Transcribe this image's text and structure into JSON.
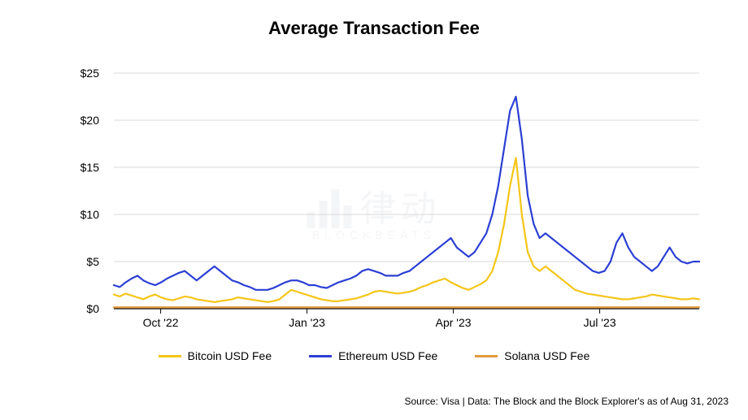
{
  "chart": {
    "type": "line",
    "title": "Average Transaction Fee",
    "title_fontsize": 22,
    "title_color": "#000000",
    "background_color": "#ffffff",
    "grid_color": "#d8d8d8",
    "axis_color": "#000000",
    "ylim": [
      0,
      25
    ],
    "yticks": [
      0,
      5,
      10,
      15,
      20,
      25
    ],
    "ytick_labels": [
      "$0",
      "$5",
      "$10",
      "$15",
      "$20",
      "$25"
    ],
    "xtick_positions": [
      0.08,
      0.33,
      0.58,
      0.83
    ],
    "xtick_labels": [
      "Oct '22",
      "Jan '23",
      "Apr '23",
      "Jul '23"
    ],
    "label_fontsize": 14,
    "line_width": 2.2,
    "series": [
      {
        "name": "Bitcoin USD Fee",
        "color": "#f5c518",
        "values": [
          1.5,
          1.3,
          1.6,
          1.4,
          1.2,
          1.0,
          1.3,
          1.5,
          1.2,
          1.0,
          0.9,
          1.1,
          1.3,
          1.2,
          1.0,
          0.9,
          0.8,
          0.7,
          0.8,
          0.9,
          1.0,
          1.2,
          1.1,
          1.0,
          0.9,
          0.8,
          0.7,
          0.8,
          1.0,
          1.5,
          2.0,
          1.8,
          1.6,
          1.4,
          1.2,
          1.0,
          0.9,
          0.8,
          0.8,
          0.9,
          1.0,
          1.1,
          1.3,
          1.5,
          1.8,
          1.9,
          1.8,
          1.7,
          1.6,
          1.7,
          1.8,
          2.0,
          2.3,
          2.5,
          2.8,
          3.0,
          3.2,
          2.8,
          2.5,
          2.2,
          2.0,
          2.3,
          2.6,
          3.0,
          4.0,
          6.0,
          9.0,
          13.0,
          16.0,
          10.0,
          6.0,
          4.5,
          4.0,
          4.5,
          4.0,
          3.5,
          3.0,
          2.5,
          2.0,
          1.8,
          1.6,
          1.5,
          1.4,
          1.3,
          1.2,
          1.1,
          1.0,
          1.0,
          1.1,
          1.2,
          1.3,
          1.5,
          1.4,
          1.3,
          1.2,
          1.1,
          1.0,
          1.0,
          1.1,
          1.0
        ]
      },
      {
        "name": "Ethereum USD Fee",
        "color": "#2b3fd4",
        "values": [
          2.5,
          2.3,
          2.8,
          3.2,
          3.5,
          3.0,
          2.7,
          2.5,
          2.8,
          3.2,
          3.5,
          3.8,
          4.0,
          3.5,
          3.0,
          3.5,
          4.0,
          4.5,
          4.0,
          3.5,
          3.0,
          2.8,
          2.5,
          2.3,
          2.0,
          2.0,
          2.0,
          2.2,
          2.5,
          2.8,
          3.0,
          3.0,
          2.8,
          2.5,
          2.5,
          2.3,
          2.2,
          2.5,
          2.8,
          3.0,
          3.2,
          3.5,
          4.0,
          4.2,
          4.0,
          3.8,
          3.5,
          3.5,
          3.5,
          3.8,
          4.0,
          4.5,
          5.0,
          5.5,
          6.0,
          6.5,
          7.0,
          7.5,
          6.5,
          6.0,
          5.5,
          6.0,
          7.0,
          8.0,
          10.0,
          13.0,
          17.0,
          21.0,
          22.5,
          18.0,
          12.0,
          9.0,
          7.5,
          8.0,
          7.5,
          7.0,
          6.5,
          6.0,
          5.5,
          5.0,
          4.5,
          4.0,
          3.8,
          4.0,
          5.0,
          7.0,
          8.0,
          6.5,
          5.5,
          5.0,
          4.5,
          4.0,
          4.5,
          5.5,
          6.5,
          5.5,
          5.0,
          4.8,
          5.0,
          5.0
        ]
      },
      {
        "name": "Solana USD Fee",
        "color": "#e29b3d",
        "values": [
          0.15,
          0.15,
          0.15,
          0.15,
          0.15,
          0.15,
          0.15,
          0.15,
          0.15,
          0.15,
          0.15,
          0.15,
          0.15,
          0.15,
          0.15,
          0.15,
          0.15,
          0.15,
          0.15,
          0.15,
          0.15,
          0.15,
          0.15,
          0.15,
          0.15,
          0.15,
          0.15,
          0.15,
          0.15,
          0.15,
          0.15,
          0.15,
          0.15,
          0.15,
          0.15,
          0.15,
          0.15,
          0.15,
          0.15,
          0.15,
          0.15,
          0.15,
          0.15,
          0.15,
          0.15,
          0.15,
          0.15,
          0.15,
          0.15,
          0.15,
          0.15,
          0.15,
          0.15,
          0.15,
          0.15,
          0.15,
          0.15,
          0.15,
          0.15,
          0.15,
          0.15,
          0.15,
          0.15,
          0.15,
          0.15,
          0.15,
          0.15,
          0.15,
          0.15,
          0.15,
          0.15,
          0.15,
          0.15,
          0.15,
          0.15,
          0.15,
          0.15,
          0.15,
          0.15,
          0.15,
          0.15,
          0.15,
          0.15,
          0.15,
          0.15,
          0.15,
          0.15,
          0.15,
          0.15,
          0.15,
          0.15,
          0.15,
          0.15,
          0.15,
          0.15,
          0.15,
          0.15,
          0.15,
          0.15,
          0.15
        ]
      }
    ],
    "legend": {
      "position": "bottom",
      "fontsize": 14,
      "swatch_width": 28
    },
    "watermark": {
      "text_cn": "律动",
      "text_en": "BLOCKBEATS",
      "color": "#7a8aa0",
      "opacity": 0.08
    }
  },
  "source_text": "Source: Visa  |  Data: The Block and the Block Explorer's as of Aug 31, 2023",
  "source_fontsize": 12
}
